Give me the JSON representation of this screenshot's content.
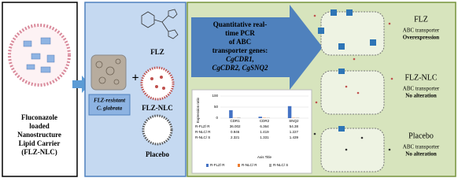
{
  "left": {
    "label_lines": [
      "Fluconazole",
      "loaded",
      "Nanostructure",
      "Lipid  Carrier",
      "(FLZ-NLC)"
    ]
  },
  "middle": {
    "strain_lines": [
      "FLZ-resistant",
      "C. glabrata"
    ],
    "drug": "FLZ",
    "nlc": "FLZ-NLC",
    "placebo": "Placebo"
  },
  "method": {
    "lines": [
      "Quantitative real-",
      "time PCR",
      "of ABC",
      "transporter genes:",
      "CgCDR1,",
      "CgCDR2, CgSNQ2"
    ]
  },
  "chart": {
    "y_title": "Expression ratio",
    "x_title": "Axis Title",
    "categories": [
      "CDR1",
      "CDR2",
      "SNQ2"
    ],
    "yticks": [
      0,
      50,
      100
    ],
    "ylim": [
      0,
      100
    ],
    "series": [
      {
        "name": "R-FLZ/ R",
        "color": "#4472c4",
        "values": [
          36.002,
          6.364,
          54.38
        ]
      },
      {
        "name": "R-NLC/ R",
        "color": "#ed7d31",
        "values": [
          0.946,
          1.419,
          1.227
        ]
      },
      {
        "name": "R-NLC/ S",
        "color": "#a5a5a5",
        "values": [
          2.321,
          1.331,
          1.439
        ]
      }
    ]
  },
  "outcomes": [
    {
      "title": "FLZ",
      "line1": "ABC transporter",
      "line2": "Overexpression"
    },
    {
      "title": "FLZ-NLC",
      "line1": "ABC transporter",
      "line2": "No alteration"
    },
    {
      "title": "Placebo",
      "line1": "ABC transporter",
      "line2": "No alteration"
    }
  ]
}
